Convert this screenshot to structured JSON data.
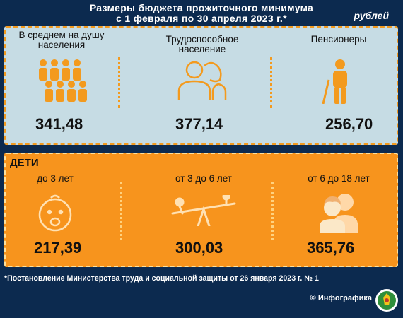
{
  "header": {
    "title_line1": "Размеры бюджета прожиточного минимума",
    "title_line2": "с 1 февраля по 30 апреля 2023 г.*",
    "unit": "рублей"
  },
  "adults": [
    {
      "label_line1": "В среднем на душу",
      "label_line2": "населения",
      "value": "341,48",
      "icon": "people-group-icon"
    },
    {
      "label_line1": "Трудоспособное",
      "label_line2": "население",
      "value": "377,14",
      "icon": "two-adults-icon"
    },
    {
      "label_line1": "Пенсионеры",
      "label_line2": "",
      "value": "256,70",
      "icon": "elderly-person-icon"
    }
  ],
  "children": {
    "heading": "ДЕТИ",
    "items": [
      {
        "label": "до 3 лет",
        "value": "217,39",
        "icon": "baby-face-icon"
      },
      {
        "label": "от 3 до 6 лет",
        "value": "300,03",
        "icon": "seesaw-icon"
      },
      {
        "label": "от 6 до 18 лет",
        "value": "365,76",
        "icon": "teenagers-icon"
      }
    ]
  },
  "footnote": "*Постановление Министерства труда и социальной защиты от 26 января 2023 г. № 1",
  "brand": "© Инфографика",
  "colors": {
    "background": "#0c2a4f",
    "top_panel": "#c6dce4",
    "bottom_panel": "#f7941d",
    "accent": "#f39a1e"
  }
}
